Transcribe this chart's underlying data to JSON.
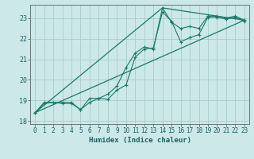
{
  "xlabel": "Humidex (Indice chaleur)",
  "background_color": "#cce8e8",
  "grid_color": "#aacccc",
  "line_color": "#1a7a6a",
  "xlim": [
    -0.5,
    23.5
  ],
  "ylim": [
    17.85,
    23.65
  ],
  "xticks": [
    0,
    1,
    2,
    3,
    4,
    5,
    6,
    7,
    8,
    9,
    10,
    11,
    12,
    13,
    14,
    15,
    16,
    17,
    18,
    19,
    20,
    21,
    22,
    23
  ],
  "yticks": [
    18,
    19,
    20,
    21,
    22,
    23
  ],
  "series1_x": [
    0,
    1,
    2,
    3,
    4,
    5,
    6,
    7,
    8,
    9,
    10,
    11,
    12,
    13,
    14,
    15,
    16,
    17,
    18,
    19,
    20,
    21,
    22,
    23
  ],
  "series1_y": [
    18.4,
    18.85,
    18.9,
    18.85,
    18.85,
    18.55,
    18.9,
    19.1,
    19.05,
    19.5,
    19.75,
    21.1,
    21.5,
    21.55,
    23.3,
    22.85,
    21.85,
    22.05,
    22.2,
    23.05,
    23.05,
    22.95,
    23.05,
    22.85
  ],
  "series2_x": [
    0,
    1,
    2,
    3,
    4,
    5,
    6,
    7,
    8,
    9,
    10,
    11,
    12,
    13,
    14,
    15,
    16,
    17,
    18,
    19,
    20,
    21,
    22,
    23
  ],
  "series2_y": [
    18.4,
    18.9,
    18.9,
    18.9,
    18.9,
    18.55,
    19.1,
    19.1,
    19.3,
    19.7,
    20.6,
    21.3,
    21.6,
    21.5,
    23.5,
    22.8,
    22.5,
    22.6,
    22.5,
    23.1,
    23.1,
    23.0,
    23.1,
    22.9
  ],
  "series3_x": [
    0,
    23
  ],
  "series3_y": [
    18.4,
    22.9
  ],
  "series4_x": [
    0,
    14,
    23
  ],
  "series4_y": [
    18.4,
    23.5,
    22.9
  ]
}
